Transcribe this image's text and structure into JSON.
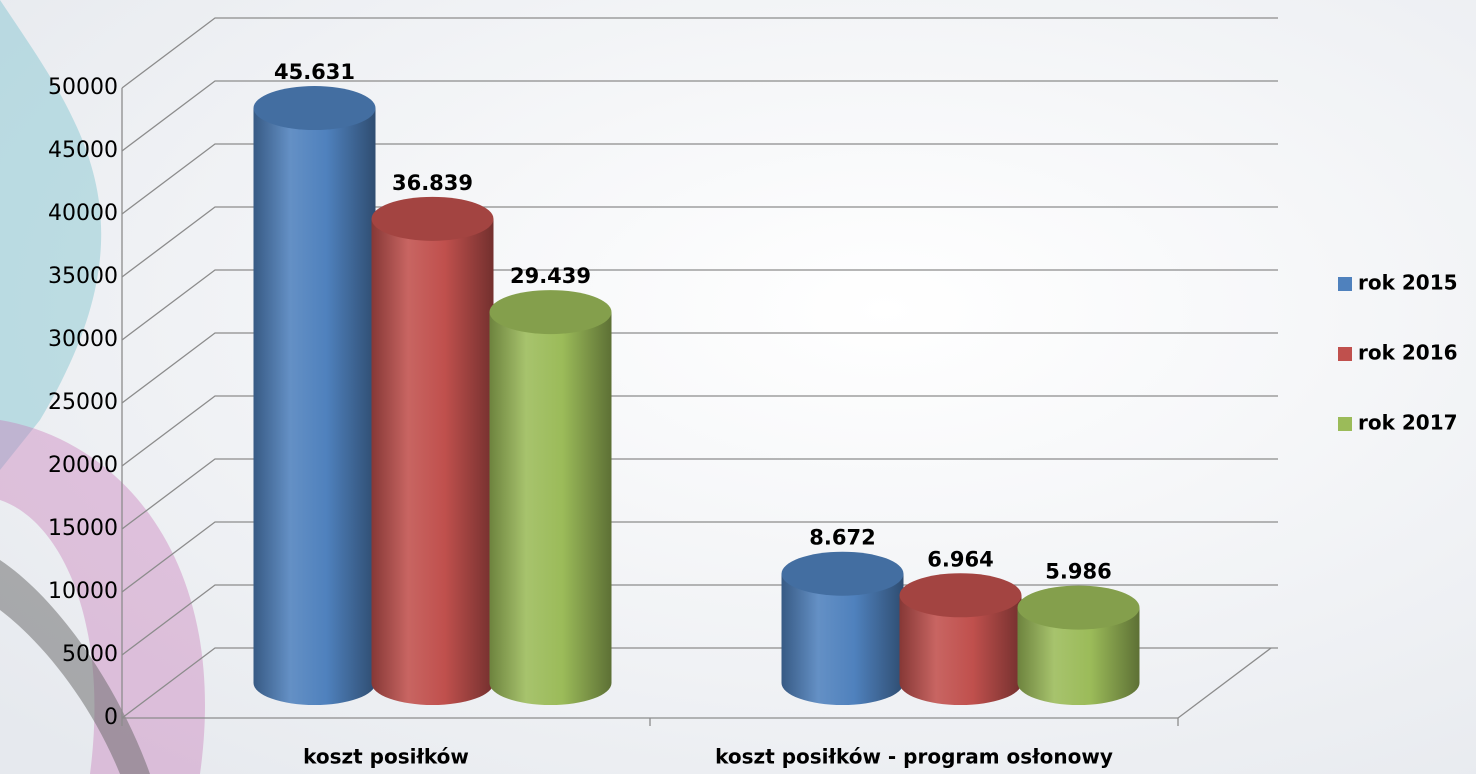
{
  "chart_data": {
    "type": "bar3d",
    "categories": [
      "koszt posiłków",
      "koszt posiłków - program osłonowy"
    ],
    "series": [
      {
        "name": "rok 2015",
        "color": "#4f81bd",
        "values": [
          45631,
          8672
        ],
        "value_labels": [
          "45.631",
          "8.672"
        ]
      },
      {
        "name": "rok 2016",
        "color": "#c0504d",
        "values": [
          36839,
          6964
        ],
        "value_labels": [
          "36.839",
          "6.964"
        ]
      },
      {
        "name": "rok 2017",
        "color": "#9bbb59",
        "values": [
          29439,
          5986
        ],
        "value_labels": [
          "29.439",
          "5.986"
        ]
      }
    ],
    "ylim": [
      0,
      50000
    ],
    "yticks": [
      0,
      5000,
      10000,
      15000,
      20000,
      25000,
      30000,
      35000,
      40000,
      45000,
      50000
    ],
    "grid": true,
    "legend": "right"
  }
}
